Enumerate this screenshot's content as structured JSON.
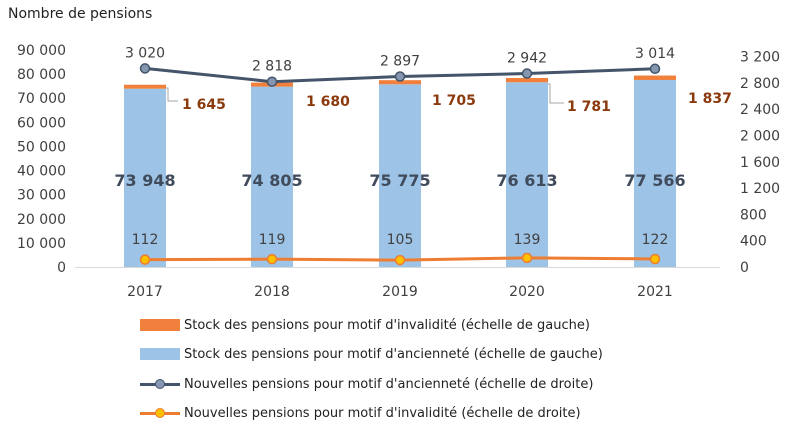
{
  "chart_data": {
    "type": "bar",
    "title": "Nombre de pensions",
    "categories": [
      "2017",
      "2018",
      "2019",
      "2020",
      "2021"
    ],
    "left_axis": {
      "ylim": [
        0,
        90000
      ],
      "ticks": [
        "0",
        "10 000",
        "20 000",
        "30 000",
        "40 000",
        "50 000",
        "60 000",
        "70 000",
        "80 000",
        "90 000"
      ]
    },
    "right_axis": {
      "ylim": [
        0,
        3300
      ],
      "ticks": [
        "0",
        "400",
        "800",
        "1 200",
        "1 600",
        "2 000",
        "2 400",
        "2 800",
        "3 200"
      ]
    },
    "grid": false,
    "legend_position": "bottom",
    "series": [
      {
        "name": "Stock des pensions pour motif d'invalidité (échelle de gauche)",
        "kind": "stacked-bar",
        "axis": "left",
        "color": "#F0803C",
        "values": [
          1645,
          1680,
          1705,
          1781,
          1837
        ],
        "labels": [
          "1 645",
          "1 680",
          "1 705",
          "1 781",
          "1 837"
        ]
      },
      {
        "name": "Stock des pensions pour motif d'ancienneté (échelle de gauche)",
        "kind": "bar",
        "axis": "left",
        "color": "#9DC3E6",
        "values": [
          73948,
          74805,
          75775,
          76613,
          77566
        ],
        "labels": [
          "73 948",
          "74 805",
          "75 775",
          "76 613",
          "77 566"
        ]
      },
      {
        "name": "Nouvelles pensions pour motif d'ancienneté (échelle de droite)",
        "kind": "line",
        "axis": "right",
        "color": "#44546A",
        "values": [
          3020,
          2818,
          2897,
          2942,
          3014
        ],
        "labels": [
          "3 020",
          "2 818",
          "2 897",
          "2 942",
          "3 014"
        ]
      },
      {
        "name": "Nouvelles pensions pour motif d'invalidité (échelle de droite)",
        "kind": "line",
        "axis": "right",
        "color": "#ED7D31",
        "values": [
          112,
          119,
          105,
          139,
          122
        ],
        "labels": [
          "112",
          "119",
          "105",
          "139",
          "122"
        ]
      }
    ]
  },
  "colors": {
    "invalidity_label": "#8B3A0E",
    "seniority_label": "#404B5C",
    "axis_text": "#404040",
    "marker_fill_gold": "#FFC000",
    "marker_fill_grey": "#8496B0"
  }
}
